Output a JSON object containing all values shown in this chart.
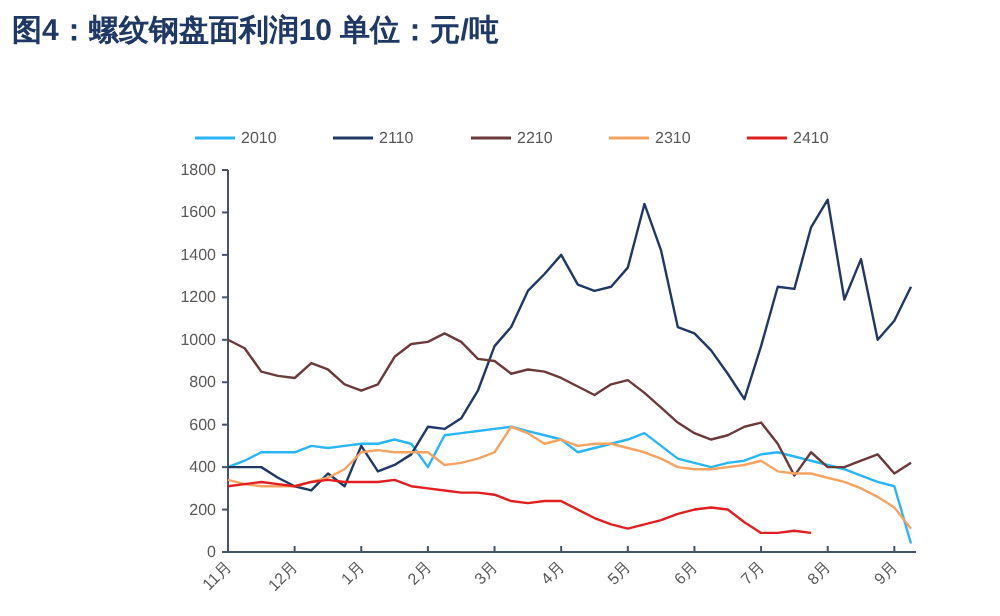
{
  "chart_data": {
    "type": "line",
    "title": "图4：螺纹钢盘面利润10   单位：元/吨",
    "legend": "top",
    "categories": [
      "11月",
      null,
      null,
      null,
      "12月",
      null,
      null,
      null,
      "1月",
      null,
      null,
      null,
      "2月",
      null,
      null,
      null,
      "3月",
      null,
      null,
      null,
      "4月",
      null,
      null,
      null,
      "5月",
      null,
      null,
      null,
      "6月",
      null,
      null,
      null,
      "7月",
      null,
      null,
      null,
      "8月",
      null,
      null,
      null,
      "9月",
      null
    ],
    "ylim": [
      0,
      1800
    ],
    "yticks": [
      0,
      200,
      400,
      600,
      800,
      1000,
      1200,
      1400,
      1600,
      1800
    ],
    "series": [
      {
        "name": "2010",
        "color": "#29b6f6",
        "values": [
          400,
          430,
          470,
          470,
          470,
          500,
          490,
          500,
          510,
          510,
          530,
          510,
          400,
          550,
          560,
          570,
          580,
          590,
          570,
          550,
          530,
          470,
          490,
          510,
          530,
          560,
          500,
          440,
          420,
          400,
          420,
          430,
          460,
          470,
          450,
          430,
          410,
          390,
          360,
          330,
          310,
          40
        ]
      },
      {
        "name": "2110",
        "color": "#1f3864",
        "values": [
          400,
          400,
          400,
          350,
          310,
          290,
          370,
          310,
          500,
          380,
          410,
          460,
          590,
          580,
          630,
          760,
          970,
          1060,
          1230,
          1310,
          1400,
          1260,
          1230,
          1250,
          1340,
          1640,
          1420,
          1060,
          1030,
          950,
          840,
          720,
          970,
          1250,
          1240,
          1530,
          1660,
          1190,
          1380,
          1000,
          1090,
          1250
        ]
      },
      {
        "name": "2210",
        "color": "#6b3a3a",
        "values": [
          1000,
          960,
          850,
          830,
          820,
          890,
          860,
          790,
          760,
          790,
          920,
          980,
          990,
          1030,
          990,
          910,
          900,
          840,
          860,
          850,
          820,
          780,
          740,
          790,
          810,
          750,
          680,
          610,
          560,
          530,
          550,
          590,
          610,
          510,
          360,
          470,
          400,
          400,
          430,
          460,
          370,
          420
        ]
      },
      {
        "name": "2310",
        "color": "#f4a460",
        "values": [
          340,
          320,
          310,
          310,
          310,
          330,
          350,
          390,
          470,
          480,
          470,
          470,
          470,
          410,
          420,
          440,
          470,
          590,
          560,
          510,
          530,
          500,
          510,
          510,
          490,
          470,
          440,
          400,
          390,
          390,
          400,
          410,
          430,
          380,
          370,
          370,
          350,
          330,
          300,
          260,
          210,
          110
        ]
      },
      {
        "name": "2410",
        "color": "#e02020",
        "values": [
          310,
          320,
          330,
          320,
          310,
          330,
          340,
          330,
          330,
          330,
          340,
          310,
          300,
          290,
          280,
          280,
          270,
          240,
          230,
          240,
          240,
          200,
          160,
          130,
          110,
          130,
          150,
          180,
          200,
          210,
          200,
          140,
          90,
          90,
          100,
          90,
          null,
          null,
          null,
          null,
          null,
          null
        ]
      }
    ]
  }
}
